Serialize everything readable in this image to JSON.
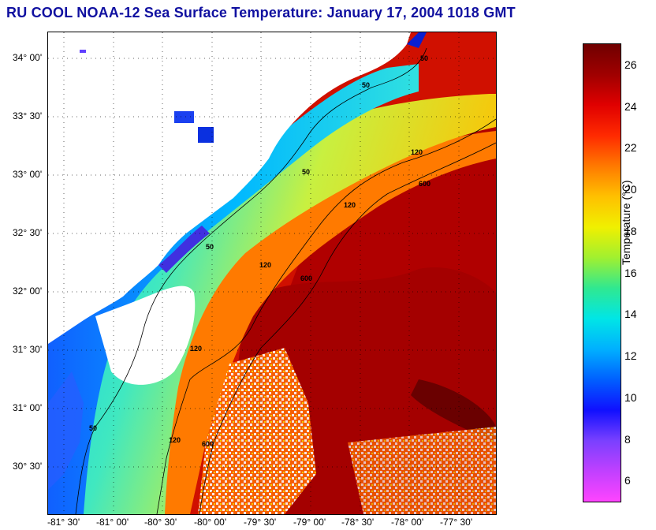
{
  "title": "RU COOL  NOAA-12  Sea Surface Temperature:  January 17, 2004 1018 GMT",
  "latitude_labels": [
    "34° 00'",
    "33° 30'",
    "33° 00'",
    "32° 30'",
    "32° 00'",
    "31° 30'",
    "31° 00'",
    "30° 30'"
  ],
  "longitude_labels": [
    "-81° 30'",
    "-81° 00'",
    "-80° 30'",
    "-80° 00'",
    "-79° 30'",
    "-79° 00'",
    "-78° 30'",
    "-78° 00'",
    "-77° 30'"
  ],
  "isobath_labels": [
    "50",
    "50",
    "50",
    "50",
    "50",
    "120",
    "120",
    "120",
    "120",
    "120",
    "600",
    "600",
    "600"
  ],
  "colorbar": {
    "title": "Temperature (°C)",
    "ticks": [
      "26",
      "24",
      "22",
      "20",
      "18",
      "16",
      "14",
      "12",
      "10",
      "8",
      "6"
    ],
    "min": 5,
    "max": 27,
    "colors": [
      "#ff44ff",
      "#c040ff",
      "#7a40ff",
      "#1010ff",
      "#0060ff",
      "#00b0ff",
      "#00e6e6",
      "#30e890",
      "#a0f030",
      "#f0f000",
      "#ffc000",
      "#ff7a00",
      "#ff2a00",
      "#e00000",
      "#a00000",
      "#700000"
    ]
  }
}
